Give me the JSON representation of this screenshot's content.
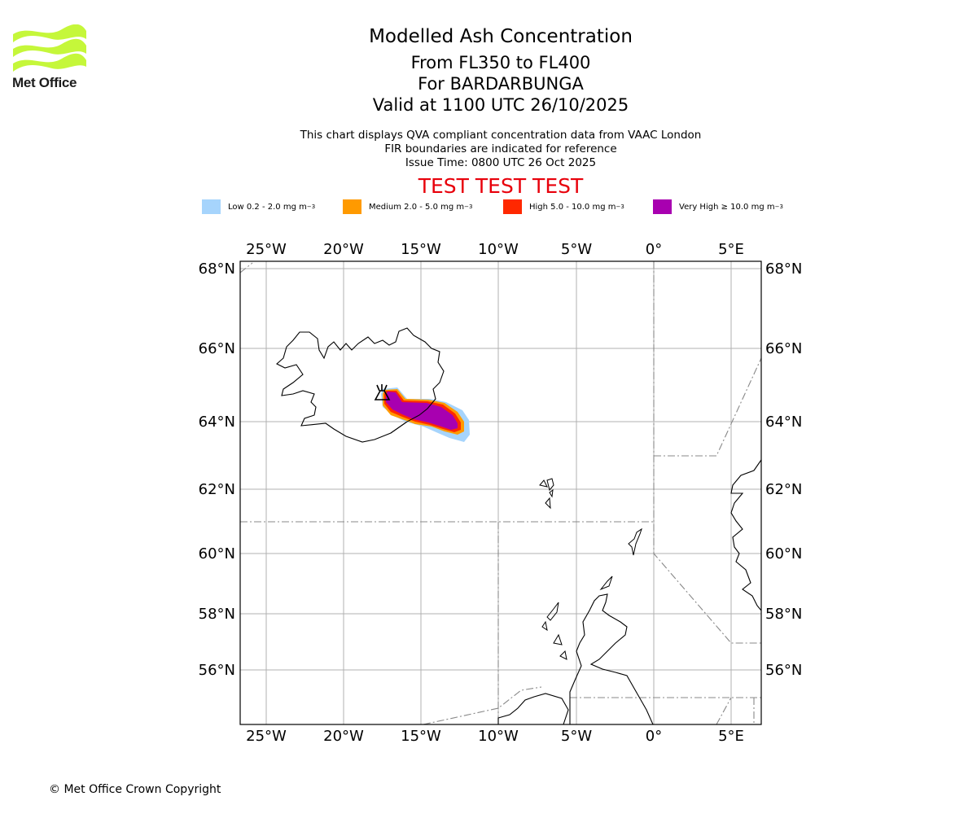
{
  "header": {
    "title": "Modelled Ash Concentration",
    "levels": "From FL350 to FL400",
    "volcano": "For BARDARBUNGA",
    "valid": "Valid at 1100 UTC 26/10/2025"
  },
  "notes": {
    "line1": "This chart displays QVA compliant concentration data from VAAC London",
    "line2": "FIR boundaries are indicated for reference",
    "issue": "Issue Time: 0800 UTC 26 Oct 2025"
  },
  "banner": "TEST TEST TEST",
  "legend": [
    {
      "label": "Low 0.2 - 2.0 mg m",
      "unit_exp": "−3",
      "color": "#a6d4fc"
    },
    {
      "label": "Medium 2.0 - 5.0 mg m",
      "unit_exp": "−3",
      "color": "#ff9a00"
    },
    {
      "label": "High 5.0 - 10.0 mg m",
      "unit_exp": "−3",
      "color": "#ff2800"
    },
    {
      "label": "Very High  ≥  10.0 mg m",
      "unit_exp": "−3",
      "color": "#a800b0"
    }
  ],
  "brand": {
    "name": "Met Office",
    "logo_color": "#c5f73a"
  },
  "axes": {
    "lon_labels": [
      "25°W",
      "20°W",
      "15°W",
      "10°W",
      "5°W",
      "0°",
      "5°E"
    ],
    "lat_labels": [
      "68°N",
      "66°N",
      "64°N",
      "62°N",
      "60°N",
      "58°N",
      "56°N"
    ]
  },
  "footer": {
    "copyright": "© Met Office Crown Copyright"
  }
}
